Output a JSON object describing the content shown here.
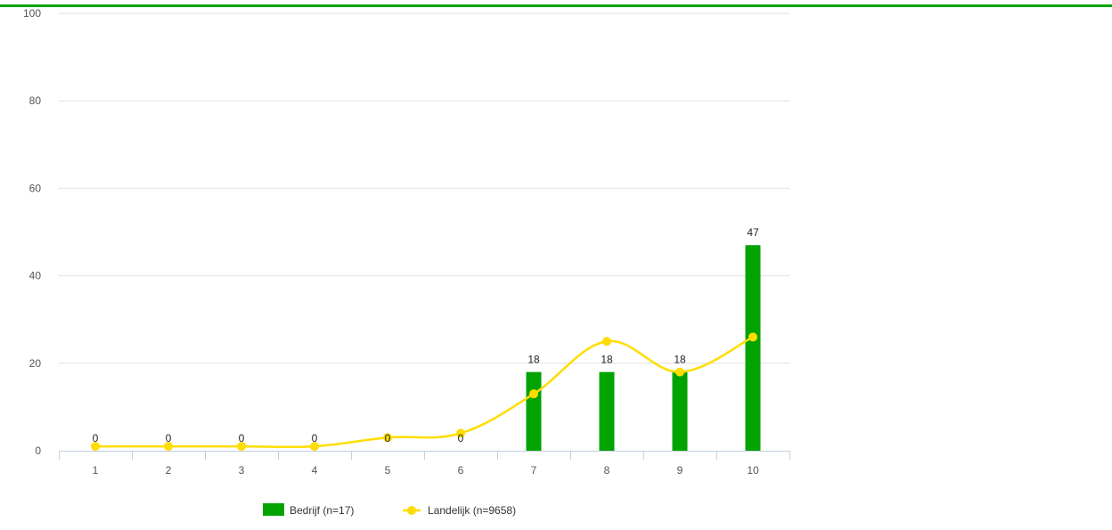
{
  "chart_data": {
    "type": "bar",
    "categories": [
      "1",
      "2",
      "3",
      "4",
      "5",
      "6",
      "7",
      "8",
      "9",
      "10"
    ],
    "ylim": [
      0,
      100
    ],
    "yticks": [
      0,
      20,
      40,
      60,
      80,
      100
    ],
    "grid": true,
    "legend_position": "bottom-center",
    "series": [
      {
        "name": "Bedrijf (n=17)",
        "kind": "bar",
        "color": "#00a300",
        "values": [
          0,
          0,
          0,
          0,
          0,
          0,
          18,
          18,
          18,
          47
        ],
        "data_labels": [
          "0",
          "0",
          "0",
          "0",
          "0",
          "0",
          "18",
          "18",
          "18",
          "47"
        ]
      },
      {
        "name": "Landelijk (n=9658)",
        "kind": "spline",
        "color": "#ffdd00",
        "values": [
          1,
          1,
          1,
          1,
          3,
          4,
          13,
          25,
          18,
          26
        ]
      }
    ]
  }
}
